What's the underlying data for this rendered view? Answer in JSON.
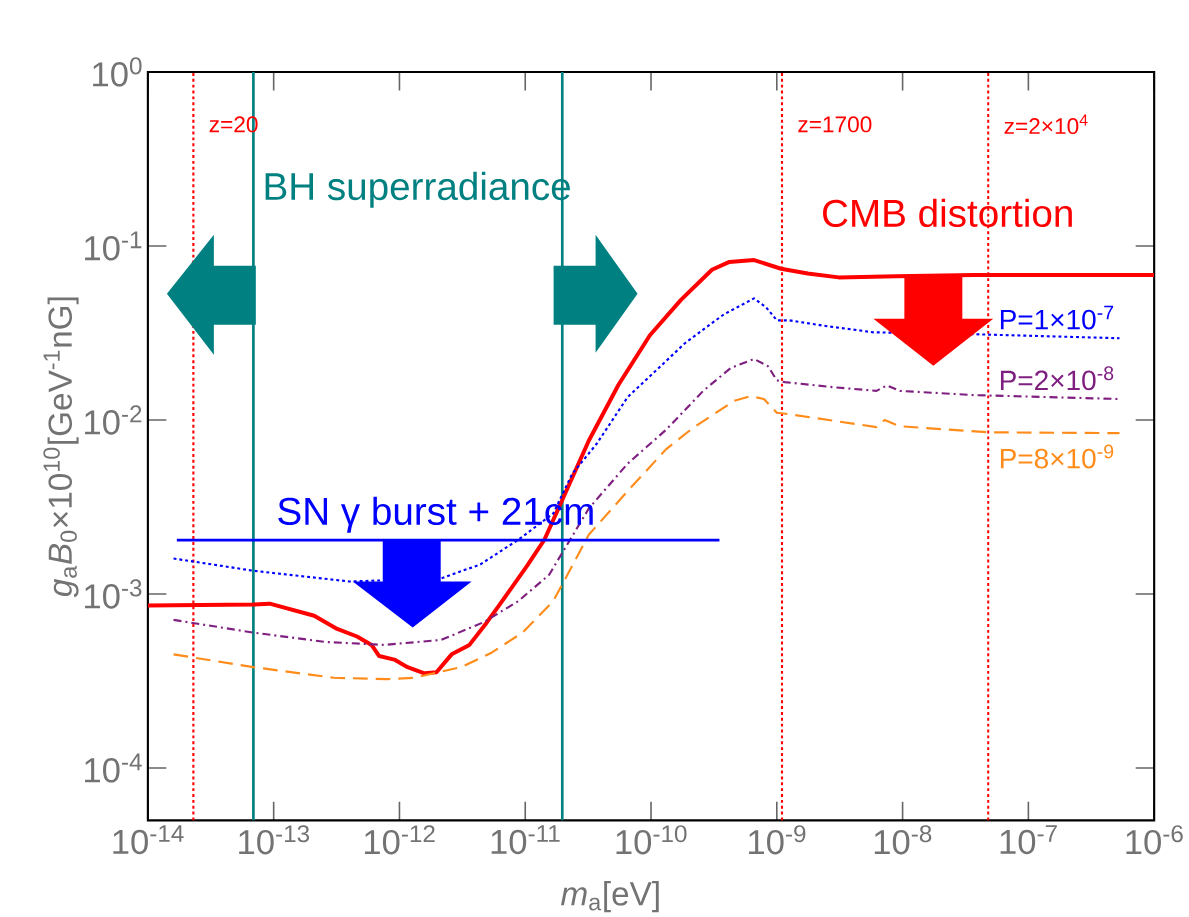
{
  "chart_data": {
    "type": "line",
    "log": "xy",
    "marker": "none",
    "xlabel": "*m*$_{a}$[eV]",
    "ylabel": "*g*$_{a}$*B*$_{0}$×10$^{10}$[GeV$^{-1}$nG]",
    "xlim": [
      1e-14,
      1e-06
    ],
    "ylim": [
      5e-05,
      1
    ],
    "xticks": [
      {
        "value": 1e-14,
        "label": "10$^{-14}$"
      },
      {
        "value": 1e-13,
        "label": "10$^{-13}$"
      },
      {
        "value": 1e-12,
        "label": "10$^{-12}$"
      },
      {
        "value": 1e-11,
        "label": "10$^{-11}$"
      },
      {
        "value": 1e-10,
        "label": "10$^{-10}$"
      },
      {
        "value": 1e-09,
        "label": "10$^{-9}$"
      },
      {
        "value": 1e-08,
        "label": "10$^{-8}$"
      },
      {
        "value": 1e-07,
        "label": "10$^{-7}$"
      },
      {
        "value": 1e-06,
        "label": "10$^{-6}$"
      }
    ],
    "yticks": [
      {
        "value": 0.0001,
        "label": "10$^{-4}$"
      },
      {
        "value": 0.001,
        "label": "10$^{-3}$"
      },
      {
        "value": 0.01,
        "label": "10$^{-2}$"
      },
      {
        "value": 0.1,
        "label": "10$^{-1}$"
      },
      {
        "value": 1,
        "label": "10$^{0}$"
      }
    ],
    "series": [
      {
        "color": "#ff0000",
        "line_style": "solid",
        "x": [
          1e-14,
          6.9e-14,
          9.3e-14,
          2.1e-13,
          3.2e-13,
          4.6e-13,
          6e-13,
          6.9e-13,
          9.1e-13,
          1.16e-12,
          1.58e-12,
          1.97e-12,
          2.6e-12,
          3.6e-12,
          4.9e-12,
          6.2e-12,
          1.04e-11,
          1.42e-11,
          3.2e-11,
          5.5e-11,
          9.8e-11,
          1.73e-10,
          3.05e-10,
          4.2e-10,
          6.6e-10,
          1.08e-09,
          1.76e-09,
          3.1e-09,
          8.9e-09,
          3.7e-08,
          1e-06
        ],
        "values": [
          0.00086,
          0.00087,
          0.00088,
          0.00075,
          0.00063,
          0.00057,
          0.00051,
          0.00044,
          0.00042,
          0.00038,
          0.00035,
          0.000355,
          0.00045,
          0.00051,
          0.00068,
          0.00086,
          0.00146,
          0.00205,
          0.0076,
          0.0159,
          0.0307,
          0.049,
          0.073,
          0.081,
          0.083,
          0.074,
          0.0695,
          0.066,
          0.067,
          0.068,
          0.068
        ]
      },
      {
        "name": "P=1×10$^{-7}$",
        "color": "#0000ff",
        "line_style": "dotted",
        "x": [
          1.6e-14,
          6.9e-14,
          4e-13,
          2.15e-12,
          4.4e-12,
          8.8e-12,
          1.67e-11,
          2.36e-11,
          3.7e-11,
          6.5e-11,
          1.86e-10,
          3.8e-10,
          6.6e-10,
          8.2e-10,
          1e-09,
          1.25e-09,
          2.5e-09,
          5.9e-09,
          7.2e-09,
          3.7e-08,
          5.3e-07
        ],
        "values": [
          0.0016,
          0.00136,
          0.00118,
          0.00123,
          0.00148,
          0.00205,
          0.0029,
          0.0049,
          0.0073,
          0.0135,
          0.0276,
          0.0405,
          0.05,
          0.0445,
          0.0374,
          0.0374,
          0.0346,
          0.0319,
          null,
          0.0311,
          0.0295
        ]
      },
      {
        "name": "P=2×10$^{-8}$",
        "color": "#7f1f80",
        "line_style": "dashdot",
        "x": [
          1.6e-14,
          6.9e-14,
          2.6e-13,
          7.6e-13,
          2.15e-12,
          4.7e-12,
          8.8e-12,
          1.55e-11,
          3.2e-11,
          6.5e-11,
          1.32e-10,
          2.6e-10,
          4.3e-10,
          6.6e-10,
          8.5e-10,
          1e-09,
          1.16e-09,
          2.9e-09,
          6.2e-09,
          7.5e-09,
          9.5e-09,
          3.7e-08,
          5.3e-07
        ],
        "values": [
          0.00071,
          0.0006,
          0.00053,
          0.00051,
          0.000545,
          0.00069,
          0.00091,
          0.00129,
          0.0031,
          0.0056,
          0.0088,
          0.0147,
          0.0199,
          0.0224,
          0.0204,
          0.0169,
          0.0165,
          0.0154,
          0.0147,
          0.0158,
          0.0147,
          0.0139,
          0.0132
        ]
      },
      {
        "name": "P=8×10$^{-9}$",
        "color": "#ff8c1a",
        "line_style": "dashed",
        "x": [
          1.6e-14,
          6.9e-14,
          3e-13,
          8e-13,
          1.3e-12,
          3.1e-12,
          5.4e-12,
          9.5e-12,
          1.67e-11,
          3.2e-11,
          6.3e-11,
          1.32e-10,
          2.15e-10,
          4.6e-10,
          6.2e-10,
          7.9e-10,
          1e-09,
          1.25e-09,
          6.2e-09,
          7.2e-09,
          9.5e-09,
          4.8e-08,
          5.3e-07
        ],
        "values": [
          0.00045,
          0.00038,
          0.00033,
          0.000324,
          0.00033,
          0.00038,
          0.00046,
          0.0006,
          0.00091,
          0.00219,
          0.0038,
          0.0068,
          0.009,
          0.0129,
          0.0137,
          0.0132,
          0.011,
          0.0108,
          0.0091,
          0.01,
          0.0092,
          0.0085,
          0.0084
        ]
      },
      {
        "color": "#0000ff",
        "line_style": "solid",
        "x": [
          1.7e-14,
          3.5e-10
        ],
        "values": [
          0.00204,
          0.00204
        ]
      }
    ],
    "ref_lines": [
      {
        "axis": "x",
        "value": 2.3e-14,
        "color": "#ff0000",
        "line_style": "dotted"
      },
      {
        "axis": "x",
        "value": 1.1e-09,
        "color": "#ff0000",
        "line_style": "dotted"
      },
      {
        "axis": "x",
        "value": 4.8e-08,
        "color": "#ff0000",
        "line_style": "dotted"
      },
      {
        "axis": "x",
        "value": 6.9e-14,
        "color": "#008080",
        "line_style": "solid"
      },
      {
        "axis": "x",
        "value": 1.97e-11,
        "color": "#008080",
        "line_style": "solid"
      }
    ],
    "annotations": [
      "BH superradiance",
      "CMB distortion",
      "SN γ burst + 21cm",
      {
        "text": "z=20",
        "x": 2.3e-14,
        "y": 0.5
      },
      {
        "text": "z=1700",
        "x": 1.1e-09,
        "y": 0.5
      },
      {
        "text": "z=2×10$^{4}$",
        "x": 4.8e-08,
        "y": 0.5
      }
    ]
  }
}
